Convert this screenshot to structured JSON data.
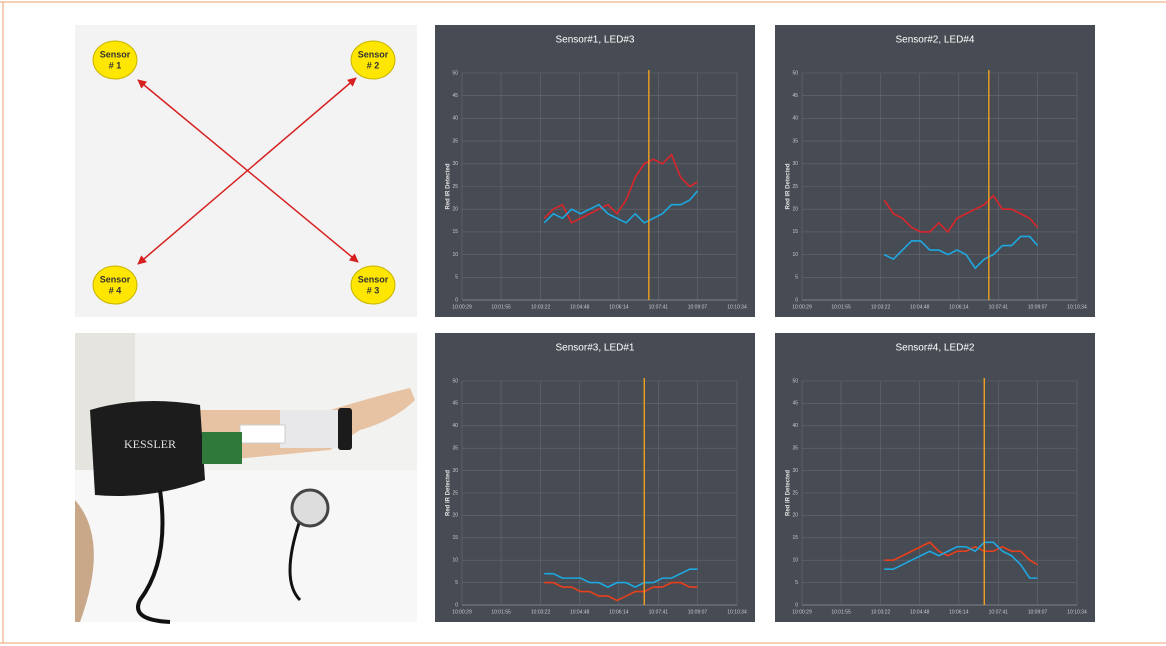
{
  "diagram": {
    "nodes": [
      {
        "lines": [
          "Sensor",
          "# 1"
        ]
      },
      {
        "lines": [
          "Sensor",
          "# 2"
        ]
      },
      {
        "lines": [
          "Sensor",
          "# 3"
        ]
      },
      {
        "lines": [
          "Sensor",
          "# 4"
        ]
      }
    ]
  },
  "photo": {
    "text": "KESSLER"
  },
  "chart_data": [
    {
      "type": "line",
      "title": "Sensor#1, LED#3",
      "y_label": "Red IR Detected",
      "x": [
        "10:03:30",
        "10:03:50",
        "10:04:10",
        "10:04:30",
        "10:04:50",
        "10:05:10",
        "10:05:30",
        "10:05:50",
        "10:06:10",
        "10:06:30",
        "10:06:50",
        "10:07:10",
        "10:07:30",
        "10:07:50",
        "10:08:10",
        "10:08:30",
        "10:08:50",
        "10:09:07"
      ],
      "series": [
        {
          "color": "#d9262b",
          "values": [
            18,
            20,
            21,
            17,
            18,
            19,
            20,
            21,
            19,
            22,
            27,
            30,
            31,
            30,
            32,
            27,
            25,
            26
          ]
        },
        {
          "color": "#1ea8e0",
          "values": [
            17,
            19,
            18,
            20,
            19,
            20,
            21,
            19,
            18,
            17,
            19,
            17,
            18,
            19,
            21,
            21,
            22,
            24
          ]
        }
      ],
      "vline": "10:07:20",
      "vline_color": "#f0a020",
      "xlim": [
        "10:00:29",
        "10:10:34"
      ],
      "xticks": [
        "10:00:29",
        "10:01:55",
        "10:03:22",
        "10:04:48",
        "10:06:14",
        "10:07:41",
        "10:09:07",
        "10:10:34"
      ],
      "ylim": [
        0,
        50
      ],
      "yticks": [
        0,
        5,
        10,
        15,
        20,
        25,
        30,
        35,
        40,
        45,
        50
      ],
      "grid": true
    },
    {
      "type": "line",
      "title": "Sensor#2, LED#4",
      "y_label": "Red IR Detected",
      "x": [
        "10:03:30",
        "10:03:50",
        "10:04:10",
        "10:04:30",
        "10:04:50",
        "10:05:10",
        "10:05:30",
        "10:05:50",
        "10:06:10",
        "10:06:30",
        "10:06:50",
        "10:07:10",
        "10:07:30",
        "10:07:50",
        "10:08:10",
        "10:08:30",
        "10:08:50",
        "10:09:07"
      ],
      "series": [
        {
          "color": "#d9262b",
          "values": [
            22,
            19,
            18,
            16,
            15,
            15,
            17,
            15,
            18,
            19,
            20,
            21,
            23,
            20,
            20,
            19,
            18,
            16
          ]
        },
        {
          "color": "#1ea8e0",
          "values": [
            10,
            9,
            11,
            13,
            13,
            11,
            11,
            10,
            11,
            10,
            7,
            9,
            10,
            12,
            12,
            14,
            14,
            12
          ]
        }
      ],
      "vline": "10:07:20",
      "vline_color": "#f0a020",
      "xlim": [
        "10:00:29",
        "10:10:34"
      ],
      "xticks": [
        "10:00:29",
        "10:01:55",
        "10:03:22",
        "10:04:48",
        "10:06:14",
        "10:07:41",
        "10:09:07",
        "10:10:34"
      ],
      "ylim": [
        0,
        50
      ],
      "yticks": [
        0,
        5,
        10,
        15,
        20,
        25,
        30,
        35,
        40,
        45,
        50
      ],
      "grid": true
    },
    {
      "type": "line",
      "title": "Sensor#3, LED#1",
      "y_label": "Red IR Detected",
      "x": [
        "10:03:30",
        "10:03:50",
        "10:04:10",
        "10:04:30",
        "10:04:50",
        "10:05:10",
        "10:05:30",
        "10:05:50",
        "10:06:10",
        "10:06:30",
        "10:06:50",
        "10:07:10",
        "10:07:30",
        "10:07:50",
        "10:08:10",
        "10:08:30",
        "10:08:50",
        "10:09:07"
      ],
      "series": [
        {
          "color": "#e8401c",
          "values": [
            5,
            5,
            4,
            4,
            3,
            3,
            2,
            2,
            1,
            2,
            3,
            3,
            4,
            4,
            5,
            5,
            4,
            4
          ]
        },
        {
          "color": "#1ea8e0",
          "values": [
            7,
            7,
            6,
            6,
            6,
            5,
            5,
            4,
            5,
            5,
            4,
            5,
            5,
            6,
            6,
            7,
            8,
            8
          ]
        }
      ],
      "vline": "10:07:10",
      "vline_color": "#f0a020",
      "xlim": [
        "10:00:29",
        "10:10:34"
      ],
      "xticks": [
        "10:00:29",
        "10:01:55",
        "10:03:22",
        "10:04:48",
        "10:06:14",
        "10:07:41",
        "10:09:07",
        "10:10:34"
      ],
      "ylim": [
        0,
        50
      ],
      "yticks": [
        0,
        5,
        10,
        15,
        20,
        25,
        30,
        35,
        40,
        45,
        50
      ],
      "grid": true
    },
    {
      "type": "line",
      "title": "Sensor#4, LED#2",
      "y_label": "Red IR Detected",
      "x": [
        "10:03:30",
        "10:03:50",
        "10:04:10",
        "10:04:30",
        "10:04:50",
        "10:05:10",
        "10:05:30",
        "10:05:50",
        "10:06:10",
        "10:06:30",
        "10:06:50",
        "10:07:10",
        "10:07:30",
        "10:07:50",
        "10:08:10",
        "10:08:30",
        "10:08:50",
        "10:09:07"
      ],
      "series": [
        {
          "color": "#e8401c",
          "values": [
            10,
            10,
            11,
            12,
            13,
            14,
            12,
            11,
            12,
            12,
            13,
            12,
            12,
            13,
            12,
            12,
            10,
            9
          ]
        },
        {
          "color": "#1ea8e0",
          "values": [
            8,
            8,
            9,
            10,
            11,
            12,
            11,
            12,
            13,
            13,
            12,
            14,
            14,
            12,
            11,
            9,
            6,
            6
          ]
        }
      ],
      "vline": "10:07:10",
      "vline_color": "#f0a020",
      "xlim": [
        "10:00:29",
        "10:10:34"
      ],
      "xticks": [
        "10:00:29",
        "10:01:55",
        "10:03:22",
        "10:04:48",
        "10:06:14",
        "10:07:41",
        "10:09:07",
        "10:10:34"
      ],
      "ylim": [
        0,
        50
      ],
      "yticks": [
        0,
        5,
        10,
        15,
        20,
        25,
        30,
        35,
        40,
        45,
        50
      ],
      "grid": true
    }
  ]
}
